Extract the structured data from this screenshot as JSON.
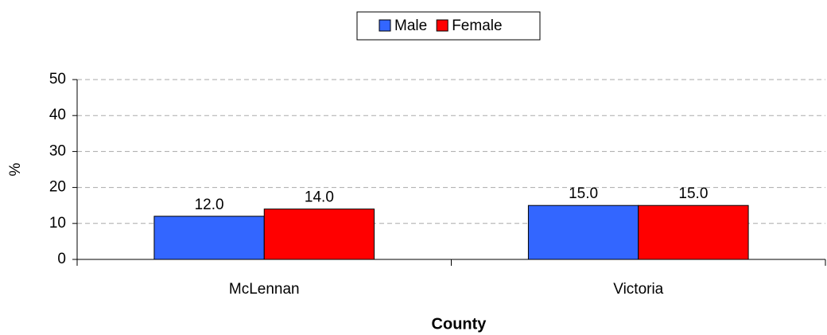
{
  "chart_data": {
    "type": "bar",
    "legend": "top",
    "x_label": "County",
    "y_label": "%",
    "categories": [
      "McLennan",
      "Victoria"
    ],
    "series": [
      {
        "name": "Male",
        "color": "#3366ff",
        "values": [
          12,
          15
        ],
        "value_labels": [
          "12.0",
          "15.0"
        ]
      },
      {
        "name": "Female",
        "color": "#ff0000",
        "values": [
          14,
          15
        ],
        "value_labels": [
          "14.0",
          "15.0"
        ]
      }
    ],
    "ylim": [
      0,
      50
    ],
    "yticks": [
      0,
      10,
      20,
      30,
      40,
      50
    ],
    "grid": true
  }
}
